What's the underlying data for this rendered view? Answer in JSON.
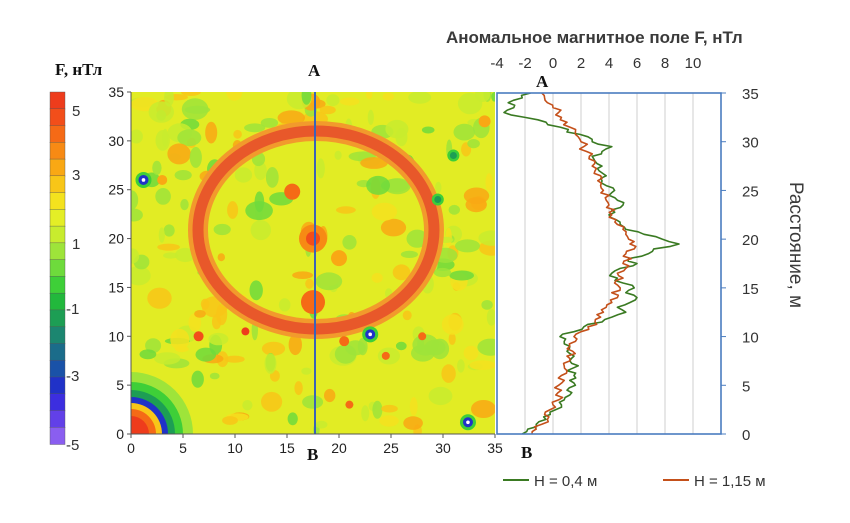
{
  "colorbar": {
    "title": "F, нТл",
    "tick_labels": [
      "5",
      "3",
      "1",
      "-1",
      "-3",
      "-5"
    ],
    "colors": [
      "#ee3c1c",
      "#f24e1a",
      "#f56a16",
      "#f78a14",
      "#f9a814",
      "#f8c618",
      "#f4e21e",
      "#e4ee26",
      "#c8ec2e",
      "#9ee43a",
      "#6edb3c",
      "#3ecf38",
      "#22b83c",
      "#1d9e54",
      "#1c8670",
      "#1b6c8a",
      "#1a52a8",
      "#2032c8",
      "#3c2ee0",
      "#6240e8",
      "#8a5ef0"
    ]
  },
  "map": {
    "xlabel_ticks": [
      "0",
      "5",
      "10",
      "15",
      "20",
      "25",
      "30",
      "35"
    ],
    "ylabel_ticks": [
      "0",
      "5",
      "10",
      "15",
      "20",
      "25",
      "30",
      "35"
    ],
    "profile_start_label": "A",
    "profile_end_label": "B"
  },
  "chart_data": [
    {
      "type": "heatmap",
      "title": "",
      "xlabel": "",
      "ylabel": "",
      "xlim": [
        0,
        35
      ],
      "ylim": [
        0,
        35
      ],
      "zlim": [
        -5,
        5
      ],
      "colorbar_label": "F, нТл",
      "features": {
        "ring_center": [
          17.5,
          21
        ],
        "ring_radii": [
          11.5,
          9
        ],
        "ring_value": 4.5,
        "background_value": 1,
        "profile_x": 17.5,
        "dipoles": [
          [
            1.2,
            26
          ],
          [
            23,
            10.2
          ],
          [
            32.4,
            1.2
          ],
          [
            29.5,
            24
          ],
          [
            31,
            28.5
          ]
        ]
      }
    },
    {
      "type": "line",
      "title": "Аномальное магнитное поле F, нТл",
      "xlabel": "Аномальное магнитное поле F, нТл",
      "ylabel": "Расстояние, м",
      "xlim": [
        -4,
        12
      ],
      "ylim": [
        0,
        35
      ],
      "x_ticks": [
        "-4",
        "-2",
        "0",
        "2",
        "4",
        "6",
        "8",
        "10"
      ],
      "y_ticks": [
        "0",
        "5",
        "10",
        "15",
        "20",
        "25",
        "30",
        "35"
      ],
      "top_label": "A",
      "bottom_label": "B",
      "series": [
        {
          "name": "H = 0,4 м",
          "color": "#3a7a22",
          "y": [
            0,
            0.5,
            1,
            1.5,
            2,
            2.5,
            3,
            3.5,
            4,
            4.5,
            5,
            5.5,
            6,
            6.5,
            7,
            7.5,
            8,
            8.5,
            9,
            9.5,
            10,
            10.5,
            11,
            11.5,
            12,
            12.5,
            13,
            13.5,
            14,
            14.5,
            15,
            15.5,
            16,
            16.5,
            17,
            17.5,
            18,
            18.5,
            19,
            19.5,
            20,
            20.5,
            21,
            21.5,
            22,
            22.5,
            23,
            23.5,
            24,
            24.5,
            25,
            25.5,
            26,
            26.5,
            27,
            27.5,
            28,
            28.5,
            29,
            29.5,
            30,
            30.5,
            31,
            31.5,
            32,
            32.5,
            33,
            33.5,
            34,
            34.5,
            35
          ],
          "x": [
            -2.2,
            -1.8,
            -1.2,
            -0.5,
            -0.2,
            0.2,
            0.6,
            0.8,
            1.2,
            1.0,
            1.6,
            1.2,
            1.5,
            1.0,
            1.8,
            1.2,
            1.5,
            1.0,
            1.2,
            0.8,
            0.5,
            1.5,
            2.2,
            3.5,
            4.2,
            5.2,
            4.6,
            5.5,
            6.0,
            5.2,
            5.8,
            5.0,
            4.6,
            4.2,
            4.8,
            6.0,
            5.4,
            6.8,
            7.2,
            9.0,
            7.8,
            6.5,
            5.2,
            4.8,
            4.5,
            4.0,
            4.2,
            5.0,
            4.6,
            4.0,
            4.4,
            3.8,
            3.5,
            3.8,
            3.3,
            3.5,
            3.0,
            2.8,
            3.5,
            4.2,
            2.8,
            2.5,
            1.0,
            0.5,
            -0.5,
            -2.0,
            -3.5,
            -2.8,
            -3.2,
            -2.2,
            -1.6
          ]
        },
        {
          "name": "H = 1,15 м",
          "color": "#c4501a",
          "y": [
            0,
            0.5,
            1,
            1.5,
            2,
            2.5,
            3,
            3.5,
            4,
            4.5,
            5,
            5.5,
            6,
            6.5,
            7,
            7.5,
            8,
            8.5,
            9,
            9.5,
            10,
            10.5,
            11,
            11.5,
            12,
            12.5,
            13,
            13.5,
            14,
            14.5,
            15,
            15.5,
            16,
            16.5,
            17,
            17.5,
            18,
            18.5,
            19,
            19.5,
            20,
            20.5,
            21,
            21.5,
            22,
            22.5,
            23,
            23.5,
            24,
            24.5,
            25,
            25.5,
            26,
            26.5,
            27,
            27.5,
            28,
            28.5,
            29,
            29.5,
            30,
            30.5,
            31,
            31.5,
            32,
            32.5,
            33,
            33.5,
            34,
            34.5,
            35
          ],
          "x": [
            -1.5,
            -1.2,
            -0.8,
            -0.4,
            -0.6,
            -0.2,
            0.0,
            0.4,
            0.2,
            0.6,
            0.4,
            0.8,
            0.6,
            1.0,
            0.8,
            1.2,
            1.0,
            1.4,
            1.2,
            1.6,
            1.5,
            2.0,
            2.5,
            3.0,
            3.4,
            3.6,
            3.8,
            4.2,
            4.6,
            4.2,
            4.8,
            4.4,
            5.0,
            4.6,
            5.2,
            5.0,
            5.6,
            5.2,
            5.8,
            5.5,
            5.4,
            5.2,
            5.0,
            4.6,
            4.5,
            4.2,
            4.4,
            4.0,
            3.8,
            4.0,
            3.6,
            3.4,
            3.2,
            3.4,
            3.0,
            2.8,
            3.0,
            2.6,
            2.4,
            2.2,
            2.0,
            1.8,
            1.6,
            1.2,
            1.0,
            0.6,
            0.4,
            0.0,
            -0.4,
            -0.6,
            -0.8
          ]
        }
      ]
    }
  ]
}
